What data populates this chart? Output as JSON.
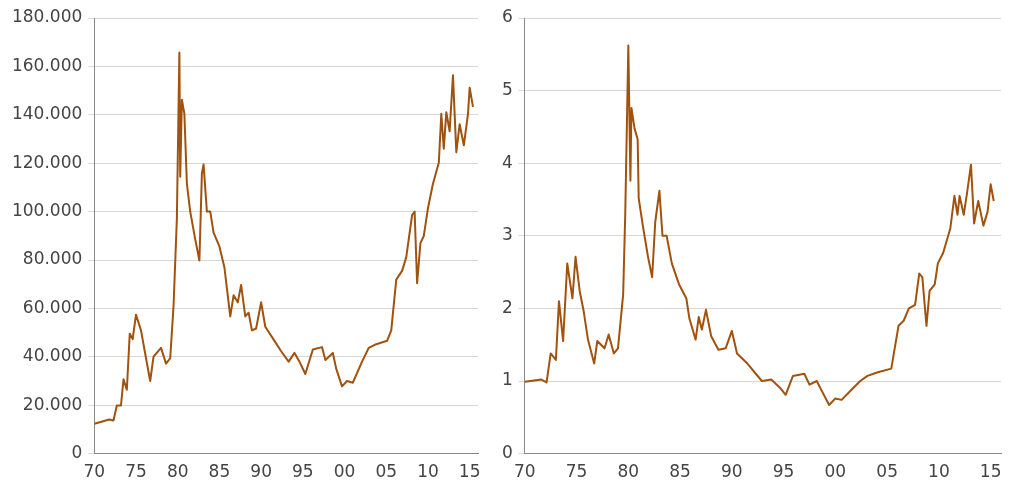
{
  "chart_data": [
    {
      "type": "line",
      "grid": "y",
      "marker": "none",
      "line_style": "solid",
      "xlim": [
        1970,
        2016
      ],
      "xticks": [
        {
          "value": 1970,
          "label": "70"
        },
        {
          "value": 1975,
          "label": "75"
        },
        {
          "value": 1980,
          "label": "80"
        },
        {
          "value": 1985,
          "label": "85"
        },
        {
          "value": 1990,
          "label": "90"
        },
        {
          "value": 1995,
          "label": "95"
        },
        {
          "value": 2000,
          "label": "00"
        },
        {
          "value": 2005,
          "label": "05"
        },
        {
          "value": 2010,
          "label": "10"
        },
        {
          "value": 2015,
          "label": "15"
        }
      ],
      "ylim": [
        0,
        180000
      ],
      "yticks": [
        0,
        {
          "value": 20000,
          "label": "20.000"
        },
        {
          "value": 40000,
          "label": "40.000"
        },
        {
          "value": 60000,
          "label": "60.000"
        },
        {
          "value": 80000,
          "label": "80.000"
        },
        {
          "value": 100000,
          "label": "100.000"
        },
        {
          "value": 120000,
          "label": "120.000"
        },
        {
          "value": 140000,
          "label": "140.000"
        },
        {
          "value": 160000,
          "label": "160.000"
        },
        {
          "value": 180000,
          "label": "180.000"
        }
      ],
      "series": [
        {
          "color": "#a0520e",
          "x": [
            1970,
            1971.8,
            1972.3,
            1972.7,
            1973.2,
            1973.5,
            1973.9,
            1974.25,
            1974.6,
            1975,
            1975.6,
            1976.2,
            1976.7,
            1977.1,
            1978,
            1978.6,
            1979.1,
            1979.5,
            1979.9,
            1980.2,
            1980.3,
            1980.5,
            1980.8,
            1981.1,
            1981.5,
            1982.1,
            1982.6,
            1982.9,
            1983.1,
            1983.5,
            1983.9,
            1984.3,
            1985,
            1985.6,
            1986.3,
            1986.7,
            1987.2,
            1987.6,
            1988.1,
            1988.5,
            1988.9,
            1989.4,
            1990,
            1990.5,
            1991.6,
            1992.4,
            1993.3,
            1994,
            1994.6,
            1995.3,
            1996.2,
            1997.3,
            1997.7,
            1998.6,
            1999,
            1999.7,
            2000.3,
            2001,
            2002.1,
            2002.9,
            2003.8,
            2005.1,
            2005.6,
            2006.2,
            2006.9,
            2007.4,
            2008.1,
            2008.4,
            2008.7,
            2009.1,
            2009.5,
            2010,
            2010.6,
            2011.3,
            2011.6,
            2011.9,
            2012.2,
            2012.6,
            2013,
            2013.4,
            2013.8,
            2014.3,
            2014.8,
            2015,
            2015.4
          ],
          "values": [
            12300,
            14100,
            13700,
            19900,
            19900,
            30700,
            26400,
            49500,
            47300,
            57400,
            50900,
            39400,
            30000,
            40100,
            43700,
            37200,
            39400,
            61000,
            97100,
            165700,
            114400,
            146200,
            140400,
            111500,
            100000,
            88500,
            79800,
            115900,
            119500,
            100000,
            100000,
            91300,
            85600,
            76900,
            56700,
            65400,
            62500,
            69700,
            56700,
            58200,
            50900,
            51700,
            62500,
            52400,
            46600,
            42300,
            38000,
            41600,
            38000,
            32900,
            43000,
            44000,
            38700,
            41600,
            35100,
            27800,
            30000,
            29300,
            38000,
            43700,
            45200,
            46600,
            50900,
            71900,
            75500,
            81200,
            98600,
            100000,
            70400,
            87000,
            89900,
            101400,
            111500,
            120200,
            140400,
            126000,
            141100,
            133200,
            156300,
            124500,
            136100,
            127400,
            140400,
            151200,
            143300
          ]
        }
      ]
    },
    {
      "type": "line",
      "grid": "y",
      "marker": "none",
      "line_style": "solid",
      "xlim": [
        1970,
        2016
      ],
      "xticks": [
        {
          "value": 1970,
          "label": "70"
        },
        {
          "value": 1975,
          "label": "75"
        },
        {
          "value": 1980,
          "label": "80"
        },
        {
          "value": 1985,
          "label": "85"
        },
        {
          "value": 1990,
          "label": "90"
        },
        {
          "value": 1995,
          "label": "95"
        },
        {
          "value": 2000,
          "label": "00"
        },
        {
          "value": 2005,
          "label": "05"
        },
        {
          "value": 2010,
          "label": "10"
        },
        {
          "value": 2015,
          "label": "15"
        }
      ],
      "ylim": [
        0,
        6
      ],
      "yticks": [
        0,
        1,
        2,
        3,
        4,
        5,
        6
      ],
      "series": [
        {
          "color": "#a0520e",
          "x": [
            1970,
            1971.6,
            1972.1,
            1972.5,
            1973,
            1973.3,
            1973.7,
            1974.1,
            1974.6,
            1974.9,
            1975.3,
            1975.7,
            1976.1,
            1976.7,
            1977,
            1977.7,
            1978.1,
            1978.6,
            1979,
            1979.5,
            1979.7,
            1980,
            1980.2,
            1980.3,
            1980.6,
            1980.9,
            1981,
            1981.4,
            1981.9,
            1982.3,
            1982.6,
            1983,
            1983.3,
            1983.7,
            1984.2,
            1984.9,
            1985.6,
            1985.9,
            1986.5,
            1986.8,
            1987.1,
            1987.5,
            1988,
            1988.7,
            1989.4,
            1990,
            1990.5,
            1991.5,
            1992.9,
            1993.8,
            1994.7,
            1995.2,
            1995.9,
            1997,
            1997.5,
            1998.2,
            1998.7,
            1999.4,
            2000,
            2000.6,
            2001.7,
            2002.4,
            2003.1,
            2004.1,
            2005.4,
            2006.1,
            2006.6,
            2007.1,
            2007.7,
            2008.1,
            2008.4,
            2008.8,
            2009.1,
            2009.6,
            2009.9,
            2010.4,
            2011.1,
            2011.5,
            2011.8,
            2012,
            2012.4,
            2012.7,
            2013.1,
            2013.4,
            2013.8,
            2014.3,
            2014.7,
            2015,
            2015.3
          ],
          "values": [
            0.99,
            1.02,
            0.98,
            1.38,
            1.29,
            2.1,
            1.55,
            2.62,
            2.14,
            2.71,
            2.24,
            1.95,
            1.57,
            1.24,
            1.55,
            1.45,
            1.64,
            1.38,
            1.45,
            2.19,
            3.29,
            5.62,
            3.76,
            4.76,
            4.48,
            4.33,
            3.52,
            3.14,
            2.71,
            2.43,
            3.19,
            3.62,
            3,
            3,
            2.62,
            2.33,
            2.14,
            1.86,
            1.57,
            1.88,
            1.71,
            1.98,
            1.62,
            1.43,
            1.45,
            1.69,
            1.38,
            1.24,
            1,
            1.02,
            0.9,
            0.81,
            1.07,
            1.1,
            0.95,
            1,
            0.86,
            0.67,
            0.76,
            0.74,
            0.9,
            1,
            1.07,
            1.12,
            1.17,
            1.76,
            1.83,
            2,
            2.05,
            2.48,
            2.43,
            1.76,
            2.24,
            2.33,
            2.62,
            2.76,
            3.1,
            3.55,
            3.29,
            3.55,
            3.29,
            3.57,
            3.98,
            3.17,
            3.48,
            3.14,
            3.33,
            3.71,
            3.48
          ]
        }
      ]
    }
  ]
}
